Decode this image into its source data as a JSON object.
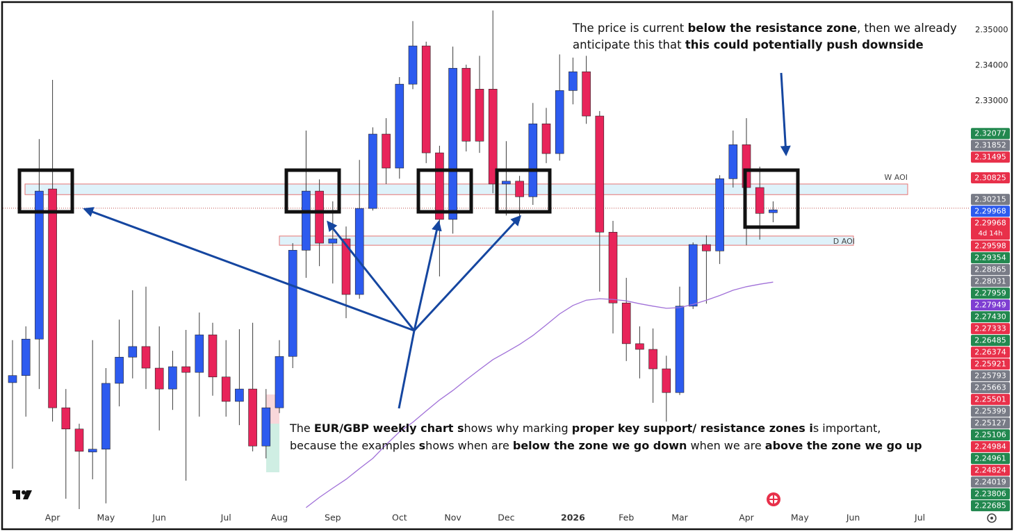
{
  "chart_data": {
    "type": "candlestick",
    "categories": [
      null,
      null,
      null,
      "Apr",
      null,
      null,
      null,
      "May",
      null,
      null,
      null,
      "Jun",
      null,
      null,
      null,
      null,
      "Jul",
      null,
      null,
      null,
      "Aug",
      null,
      null,
      null,
      "Sep",
      null,
      null,
      null,
      null,
      "Oct",
      null,
      null,
      null,
      "Nov",
      null,
      null,
      null,
      "Dec",
      null,
      null,
      null,
      null,
      "2026",
      null,
      null,
      null,
      "Feb",
      null,
      null,
      null,
      "Mar",
      null,
      null,
      null,
      null,
      "Apr",
      null,
      null,
      null,
      "May",
      null,
      null,
      null,
      "Jun",
      null,
      null,
      null,
      null,
      "Jul",
      null
    ],
    "open": [
      2.2504,
      2.2524,
      2.2627,
      2.3051,
      2.2433,
      2.2373,
      2.2308,
      2.2316,
      2.2502,
      2.2576,
      2.2606,
      2.2545,
      2.2486,
      2.2549,
      2.2533,
      2.2639,
      2.252,
      2.2451,
      2.2486,
      2.2325,
      2.2433,
      2.2578,
      2.2878,
      2.3045,
      2.2898,
      2.291,
      2.2753,
      2.2996,
      2.3206,
      2.311,
      2.3347,
      2.3455,
      2.3153,
      2.2965,
      2.3392,
      2.3333,
      2.3333,
      2.3065,
      2.3073,
      2.3029,
      2.3235,
      2.3151,
      2.3329,
      2.3382,
      2.3257,
      2.2929,
      2.2729,
      2.2614,
      2.2598,
      2.2543,
      2.2476,
      2.272,
      2.2894,
      2.2876,
      2.308,
      2.3176,
      2.3055,
      2.2984,
      null,
      null,
      null,
      null,
      null,
      null,
      null,
      null,
      null,
      null,
      null,
      null
    ],
    "high": [
      2.2624,
      2.2663,
      2.3192,
      2.3359,
      2.2486,
      2.2388,
      2.2624,
      2.2545,
      2.2682,
      2.2765,
      2.2775,
      2.2663,
      2.2594,
      2.2653,
      2.2702,
      2.2673,
      2.2624,
      2.2655,
      2.2673,
      2.2486,
      2.2624,
      2.2898,
      2.3216,
      2.3078,
      2.3016,
      2.2945,
      2.3133,
      2.3225,
      2.3251,
      2.3367,
      2.3525,
      2.3467,
      2.3173,
      2.3453,
      2.3402,
      2.3427,
      2.3555,
      2.3186,
      2.3088,
      2.3294,
      2.328,
      2.3431,
      2.3422,
      2.3427,
      2.3271,
      2.2961,
      2.28,
      2.2663,
      2.2657,
      2.258,
      2.2775,
      2.29,
      2.292,
      2.309,
      2.3216,
      2.3251,
      2.3114,
      2.3016,
      null,
      null,
      null,
      null,
      null,
      null,
      null,
      null,
      null,
      null,
      null,
      null
    ],
    "low": [
      2.2261,
      2.2408,
      2.2486,
      2.2394,
      2.2176,
      2.2147,
      2.2231,
      2.2163,
      2.2437,
      2.2516,
      2.2486,
      2.2369,
      2.2427,
      2.2227,
      2.2408,
      2.2467,
      2.2408,
      2.2384,
      2.231,
      2.229,
      2.2418,
      2.2545,
      2.28,
      2.2833,
      2.2784,
      2.2686,
      2.2741,
      2.299,
      2.3065,
      2.308,
      2.3333,
      2.3124,
      2.2804,
      2.2925,
      2.3157,
      2.3153,
      2.3039,
      2.2976,
      2.2961,
      2.3006,
      2.3124,
      2.3131,
      2.329,
      2.3235,
      2.2761,
      2.2643,
      2.2565,
      2.2516,
      2.2447,
      2.2394,
      2.2469,
      2.2712,
      2.2727,
      2.2839,
      2.3055,
      2.2892,
      2.2908,
      2.2957,
      null,
      null,
      null,
      null,
      null,
      null,
      null,
      null,
      null,
      null,
      null,
      null
    ],
    "close": [
      2.2524,
      2.2627,
      2.3045,
      2.2433,
      2.2373,
      2.231,
      2.2316,
      2.2502,
      2.2576,
      2.2606,
      2.2545,
      2.2486,
      2.2549,
      2.2533,
      2.2639,
      2.252,
      2.2451,
      2.2486,
      2.2325,
      2.2433,
      2.2578,
      2.2878,
      2.3045,
      2.2898,
      2.291,
      2.2753,
      2.2996,
      2.3206,
      2.311,
      2.3347,
      2.3455,
      2.3153,
      2.2965,
      2.3392,
      2.3186,
      2.3186,
      2.3065,
      2.3073,
      2.3029,
      2.3235,
      2.3151,
      2.3329,
      2.3382,
      2.3257,
      2.2929,
      2.2729,
      2.2614,
      2.2598,
      2.2543,
      2.2476,
      2.272,
      2.2894,
      2.2876,
      2.308,
      2.3176,
      2.3055,
      2.2982,
      2.2992,
      null,
      null,
      null,
      null,
      null,
      null,
      null,
      null,
      null,
      null,
      null,
      null
    ],
    "up_color": "#2d5bef",
    "down_color": "#e8245a",
    "moving_average": {
      "color": "#a070d8",
      "values": [
        null,
        null,
        null,
        null,
        null,
        null,
        null,
        null,
        null,
        null,
        null,
        null,
        null,
        null,
        null,
        null,
        null,
        null,
        null,
        null,
        null,
        null,
        2.2151,
        2.218,
        2.2206,
        2.2231,
        2.2261,
        2.229,
        2.2329,
        2.2365,
        2.2392,
        2.2424,
        2.2455,
        2.2482,
        2.2512,
        2.2541,
        2.2569,
        2.259,
        2.2612,
        2.2637,
        2.2667,
        2.2698,
        2.2722,
        2.2737,
        2.2741,
        2.2739,
        2.2735,
        2.2727,
        2.272,
        2.2714,
        2.2716,
        2.2725,
        2.2737,
        2.275,
        2.2765,
        2.2775,
        2.2782,
        2.2788,
        null,
        null,
        null,
        null,
        null,
        null,
        null,
        null,
        null,
        null,
        null,
        null
      ]
    },
    "ylim": [
      2.2141,
      2.3569
    ],
    "yticks": [
      {
        "value": 2.35,
        "label": "2.35000"
      },
      {
        "value": 2.34,
        "label": "2.34000"
      },
      {
        "value": 2.33,
        "label": "2.33000"
      }
    ],
    "price_labels": [
      {
        "value": 2.32077,
        "color": "#22884f"
      },
      {
        "value": 2.31852,
        "color": "#787b86"
      },
      {
        "value": 2.31495,
        "color": "#e8304a"
      },
      {
        "value": 2.30825,
        "color": "#e8304a"
      },
      {
        "value": 2.30215,
        "color": "#787b86"
      },
      {
        "value": 2.29968,
        "color": "#2d5bef"
      },
      {
        "value": 2.29968,
        "color": "#e8304a",
        "countdown": "4d 14h"
      },
      {
        "value": 2.29598,
        "color": "#e8304a"
      },
      {
        "value": 2.29354,
        "color": "#22884f"
      },
      {
        "value": 2.28865,
        "color": "#787b86"
      },
      {
        "value": 2.28031,
        "color": "#787b86"
      },
      {
        "value": 2.27959,
        "color": "#22884f"
      },
      {
        "value": 2.27949,
        "color": "#7e3fd2"
      },
      {
        "value": 2.2743,
        "label": "2.27430",
        "color": "#22884f"
      },
      {
        "value": 2.27333,
        "color": "#e8304a"
      },
      {
        "value": 2.26485,
        "color": "#22884f"
      },
      {
        "value": 2.26374,
        "color": "#e8304a"
      },
      {
        "value": 2.25921,
        "color": "#e8304a"
      },
      {
        "value": 2.25793,
        "color": "#787b86"
      },
      {
        "value": 2.25663,
        "color": "#787b86"
      },
      {
        "value": 2.25501,
        "color": "#e8304a"
      },
      {
        "value": 2.25399,
        "color": "#787b86"
      },
      {
        "value": 2.25127,
        "color": "#787b86"
      },
      {
        "value": 2.25106,
        "color": "#22884f"
      },
      {
        "value": 2.24984,
        "color": "#e8304a"
      },
      {
        "value": 2.24961,
        "color": "#22884f"
      },
      {
        "value": 2.24824,
        "color": "#e8304a"
      },
      {
        "value": 2.24019,
        "color": "#787b86"
      },
      {
        "value": 2.23806,
        "color": "#22884f"
      },
      {
        "value": 2.22685,
        "color": "#22884f"
      }
    ],
    "zones": [
      {
        "label": "W AOI",
        "top": 2.3065,
        "bottom": 2.3035
      },
      {
        "label": "D AOI",
        "top": 2.2918,
        "bottom": 2.2892
      }
    ],
    "annotations": [
      {
        "lines": [
          [
            {
              "text": "The price is current "
            },
            {
              "text": "below the resistance zone",
              "bold": true
            },
            {
              "text": ", then we already"
            }
          ],
          [
            {
              "text": "anticipate this that "
            },
            {
              "text": "this could potentially push downside",
              "bold": true
            }
          ]
        ]
      },
      {
        "lines": [
          [
            {
              "text": "The "
            },
            {
              "text": "EUR/GBP weekly chart s",
              "bold": true
            },
            {
              "text": "hows why marking "
            },
            {
              "text": "proper key support/ resistance zones i",
              "bold": true
            },
            {
              "text": "s important,"
            }
          ],
          [
            {
              "text": "because the examples "
            },
            {
              "text": "s",
              "bold": true
            },
            {
              "text": "hows when are "
            },
            {
              "text": "below the zone we go down",
              "bold": true
            },
            {
              "text": " when we are "
            },
            {
              "text": "above the zone we go up",
              "bold": true
            }
          ]
        ]
      }
    ]
  }
}
